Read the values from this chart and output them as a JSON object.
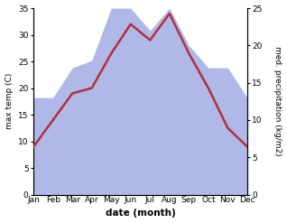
{
  "months": [
    "Jan",
    "Feb",
    "Mar",
    "Apr",
    "May",
    "Jun",
    "Jul",
    "Aug",
    "Sep",
    "Oct",
    "Nov",
    "Dec"
  ],
  "x": [
    1,
    2,
    3,
    4,
    5,
    6,
    7,
    8,
    9,
    10,
    11,
    12
  ],
  "temperature": [
    9,
    14,
    19,
    20,
    26.5,
    32,
    29,
    34,
    26.5,
    20,
    12.5,
    9
  ],
  "precipitation": [
    13,
    13,
    17,
    18,
    25,
    25,
    22,
    25,
    20,
    17,
    17,
    13
  ],
  "temp_color": "#b03040",
  "precip_color": "#b0b8e8",
  "xlabel": "date (month)",
  "ylabel_left": "max temp (C)",
  "ylabel_right": "med. precipitation (kg/m2)",
  "ylim_left": [
    0,
    35
  ],
  "ylim_right": [
    0,
    25
  ],
  "yticks_left": [
    0,
    5,
    10,
    15,
    20,
    25,
    30,
    35
  ],
  "yticks_right": [
    0,
    5,
    10,
    15,
    20,
    25
  ],
  "background_color": "#ffffff",
  "temp_linewidth": 1.8,
  "label_fontsize": 6.5,
  "xlabel_fontsize": 7.5
}
